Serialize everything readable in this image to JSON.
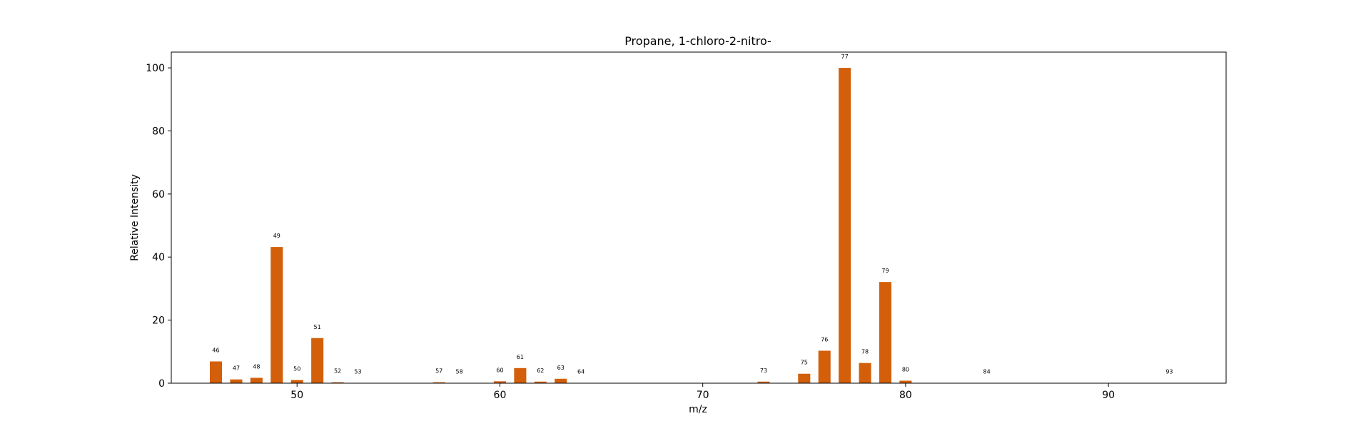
{
  "chart_data": {
    "type": "bar",
    "title": "Propane, 1-chloro-2-nitro-",
    "xlabel": "m/z",
    "ylabel": "Relative Intensity",
    "xlim": [
      43.8,
      95.8
    ],
    "ylim": [
      0,
      105
    ],
    "xticks": [
      50,
      60,
      70,
      80,
      90
    ],
    "yticks": [
      0,
      20,
      40,
      60,
      80,
      100
    ],
    "bar_color": "#d35f0a",
    "grid": false,
    "legend": "none",
    "x": [
      46,
      47,
      48,
      49,
      50,
      51,
      52,
      53,
      57,
      58,
      60,
      61,
      62,
      63,
      64,
      73,
      75,
      76,
      77,
      78,
      79,
      80,
      84,
      93
    ],
    "values": [
      6.9,
      1.2,
      1.7,
      43.2,
      1.0,
      14.3,
      0.3,
      0.1,
      0.3,
      0.1,
      0.6,
      4.8,
      0.5,
      1.4,
      0.1,
      0.5,
      3.0,
      10.3,
      100.0,
      6.4,
      32.1,
      0.8,
      0.1,
      0.1
    ],
    "labels": [
      "46",
      "47",
      "48",
      "49",
      "50",
      "51",
      "52",
      "53",
      "57",
      "58",
      "60",
      "61",
      "62",
      "63",
      "64",
      "73",
      "75",
      "76",
      "77",
      "78",
      "79",
      "80",
      "84",
      "93"
    ]
  }
}
